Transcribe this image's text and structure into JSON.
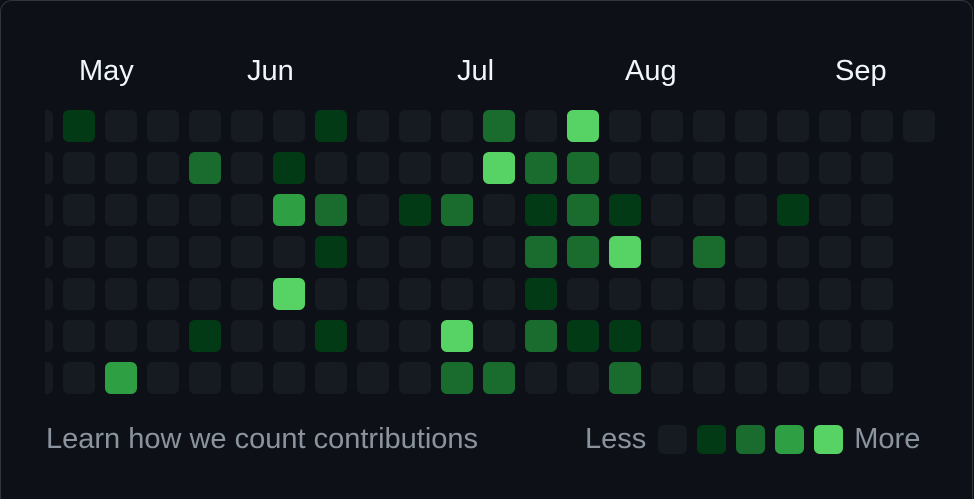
{
  "months": [
    {
      "label": "May",
      "col": 1
    },
    {
      "label": "Jun",
      "col": 5
    },
    {
      "label": "Jul",
      "col": 10
    },
    {
      "label": "Aug",
      "col": 14
    },
    {
      "label": "Sep",
      "col": 19
    }
  ],
  "levels": [
    "#161b22",
    "#033a16",
    "#196c2e",
    "#2ea043",
    "#56d364"
  ],
  "grid": [
    [
      0,
      1,
      0,
      0,
      0,
      0,
      0,
      1,
      0,
      0,
      0,
      2,
      0,
      4,
      0,
      0,
      0,
      0,
      0,
      0,
      0,
      0
    ],
    [
      0,
      0,
      0,
      0,
      2,
      0,
      1,
      0,
      0,
      0,
      0,
      4,
      2,
      2,
      0,
      0,
      0,
      0,
      0,
      0,
      0
    ],
    [
      0,
      0,
      0,
      0,
      0,
      0,
      3,
      2,
      0,
      1,
      2,
      0,
      1,
      2,
      1,
      0,
      0,
      0,
      1,
      0,
      0
    ],
    [
      0,
      0,
      0,
      0,
      0,
      0,
      0,
      1,
      0,
      0,
      0,
      0,
      2,
      2,
      4,
      0,
      2,
      0,
      0,
      0,
      0
    ],
    [
      0,
      0,
      0,
      0,
      0,
      0,
      4,
      0,
      0,
      0,
      0,
      0,
      1,
      0,
      0,
      0,
      0,
      0,
      0,
      0,
      0
    ],
    [
      0,
      0,
      0,
      0,
      1,
      0,
      0,
      1,
      0,
      0,
      4,
      0,
      2,
      1,
      1,
      0,
      0,
      0,
      0,
      0,
      0
    ],
    [
      0,
      0,
      3,
      0,
      0,
      0,
      0,
      0,
      0,
      0,
      2,
      2,
      0,
      0,
      2,
      0,
      0,
      0,
      0,
      0,
      0
    ]
  ],
  "footer": {
    "learn_link": "Learn how we count contributions",
    "less_label": "Less",
    "more_label": "More"
  }
}
